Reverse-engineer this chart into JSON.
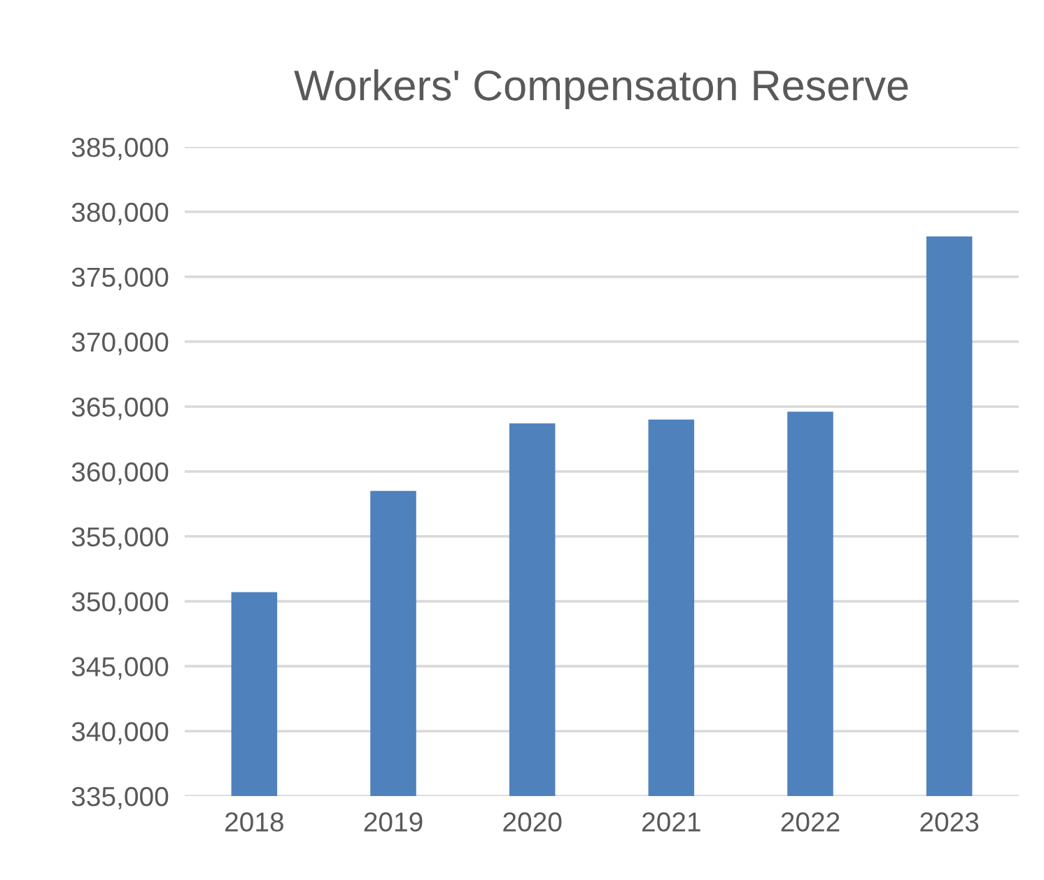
{
  "chart_data": {
    "type": "bar",
    "title": "Workers' Compensaton Reserve",
    "categories": [
      "2018",
      "2019",
      "2020",
      "2021",
      "2022",
      "2023"
    ],
    "values": [
      350700,
      358500,
      363700,
      364000,
      364600,
      378100
    ],
    "color": "#4f81bd",
    "ylim": [
      335000,
      385000
    ],
    "yticks": [
      {
        "value": 335000,
        "label": "335,000"
      },
      {
        "value": 340000,
        "label": "340,000"
      },
      {
        "value": 345000,
        "label": "345,000"
      },
      {
        "value": 350000,
        "label": "350,000"
      },
      {
        "value": 355000,
        "label": "355,000"
      },
      {
        "value": 360000,
        "label": "360,000"
      },
      {
        "value": 365000,
        "label": "365,000"
      },
      {
        "value": 370000,
        "label": "370,000"
      },
      {
        "value": 375000,
        "label": "375,000"
      },
      {
        "value": 380000,
        "label": "380,000"
      },
      {
        "value": 385000,
        "label": "385,000"
      }
    ],
    "grid": "y"
  }
}
